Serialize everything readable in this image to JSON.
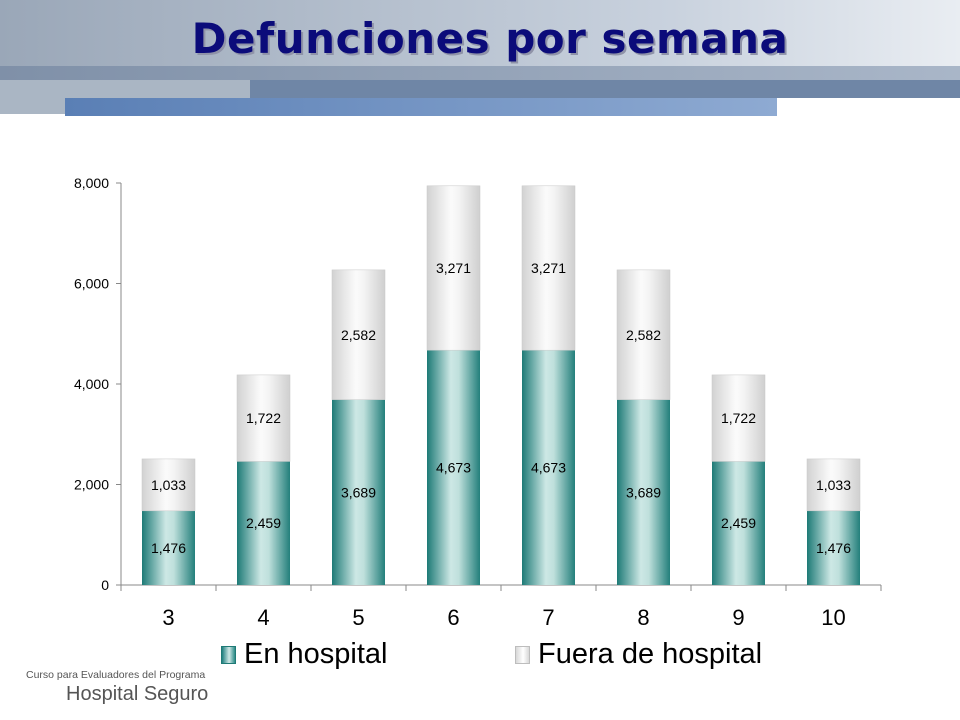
{
  "title": "Defunciones por semana",
  "footer": {
    "line1": "Curso para Evaluadores del Programa",
    "line2": "Hospital Seguro"
  },
  "legend": {
    "series1": "En hospital",
    "series2": "Fuera de hospital"
  },
  "colors": {
    "title": "#0b0b7a",
    "hospital": "#2a8a86",
    "fuera": "#e6e6e6"
  },
  "chart_data": {
    "type": "bar",
    "stacked": true,
    "categories": [
      "3",
      "4",
      "5",
      "6",
      "7",
      "8",
      "9",
      "10"
    ],
    "series": [
      {
        "name": "En hospital",
        "values": [
          1476,
          2459,
          3689,
          4673,
          4673,
          3689,
          2459,
          1476
        ]
      },
      {
        "name": "Fuera de hospital",
        "values": [
          1033,
          1722,
          2582,
          3271,
          3271,
          2582,
          1722,
          1033
        ]
      }
    ],
    "ylim": [
      0,
      8000
    ],
    "yticks": [
      0,
      2000,
      4000,
      6000,
      8000
    ],
    "ytick_labels": [
      "0",
      "2,000",
      "4,000",
      "6,000",
      "8,000"
    ],
    "legend_position": "bottom",
    "grid": false
  }
}
